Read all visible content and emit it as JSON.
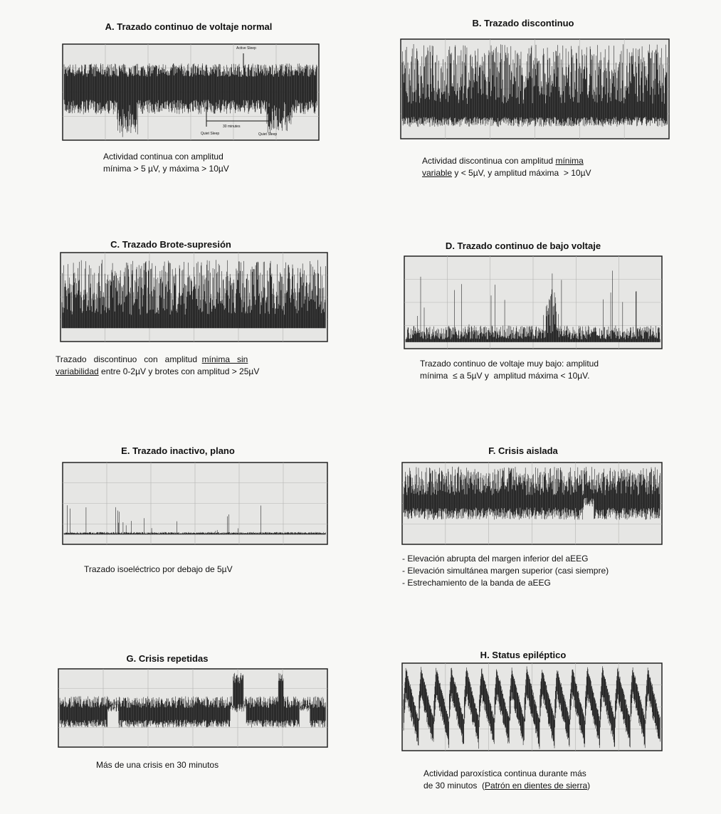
{
  "panels": [
    {
      "title": "A.  Trazado continuo de voltaje normal",
      "caption": [
        [
          "Actividad continua con amplitud"
        ],
        [
          "mínima > 5 µV, y máxima > 10µV"
        ]
      ],
      "labels": [
        "Active Sleep",
        "30 minutes",
        "Quiet Sleep",
        "Quiet Sleep"
      ]
    },
    {
      "title": "B. Trazado discontinuo",
      "caption": [
        [
          "Actividad discontinua con amplitud ",
          {
            "text": "mínima",
            "underline": true
          }
        ],
        [
          {
            "text": "variable",
            "underline": true
          },
          " y < 5µV, y amplitud máxima  > 10µV"
        ]
      ]
    },
    {
      "title": "C. Trazado Brote-supresión",
      "caption": [
        [
          "Trazado   discontinuo   con   amplitud  ",
          {
            "text": "mínima   sin",
            "underline": true
          }
        ],
        [
          {
            "text": "variabilidad",
            "underline": true
          },
          " entre 0-2µV y brotes con amplitud > 25µV"
        ]
      ]
    },
    {
      "title": "D. Trazado continuo de bajo voltaje",
      "caption": [
        [
          "Trazado continuo de voltaje muy bajo: amplitud"
        ],
        [
          "mínima  ≤ a 5µV y  amplitud máxima < 10µV."
        ]
      ]
    },
    {
      "title": "E. Trazado inactivo, plano",
      "caption": [
        [
          "Trazado isoeléctrico por debajo de 5µV"
        ]
      ]
    },
    {
      "title": "F. Crisis aislada",
      "caption": [
        [
          "- Elevación abrupta del margen inferior del aEEG"
        ],
        [
          "- Elevación simultánea margen superior (casi siempre)"
        ],
        [
          "- Estrechamiento de la banda de aEEG"
        ]
      ]
    },
    {
      "title": "G. Crisis repetidas",
      "caption": [
        [
          "Más de una crisis en 30 minutos"
        ]
      ]
    },
    {
      "title": "H. Status epiléptico",
      "caption": [
        [
          "Actividad paroxística continua durante más"
        ],
        [
          "de 30 minutos  (",
          {
            "text": "Patrón en dientes de sierra",
            "underline": true
          },
          ")"
        ]
      ]
    }
  ]
}
